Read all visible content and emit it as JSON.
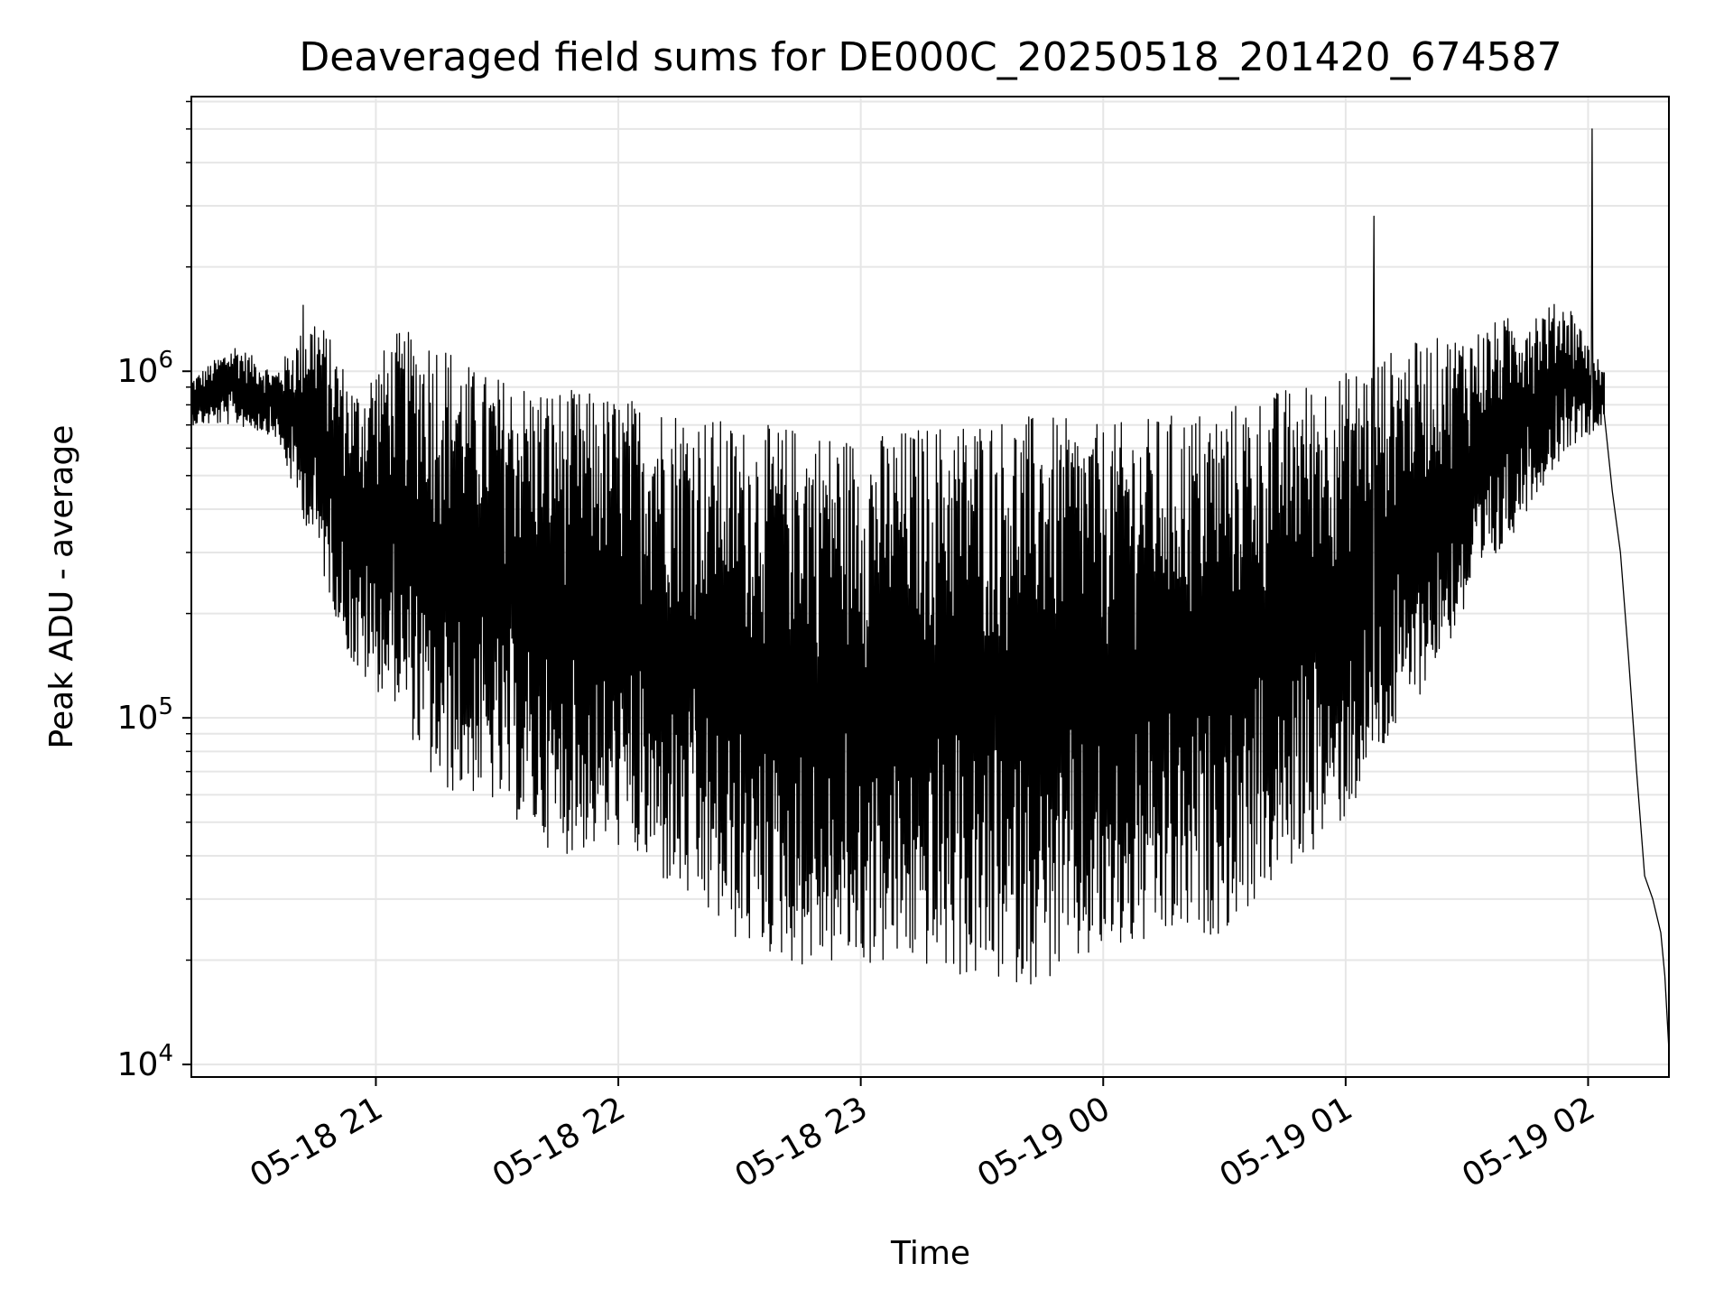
{
  "chart_data": {
    "type": "line",
    "title": "Deaveraged field sums for DE000C_20250518_201420_674587",
    "xlabel": "Time",
    "ylabel": "Peak ADU - average",
    "y_scale": "log",
    "grid": true,
    "line_color": "#000000",
    "grid_color": "#e6e6e6",
    "xlim": [
      "2025-05-18 20:14:20",
      "2025-05-19 02:20:00"
    ],
    "ylim": [
      9200,
      6200000
    ],
    "x_ticks": [
      {
        "value": "2025-05-18 21:00",
        "label": "05-18 21"
      },
      {
        "value": "2025-05-18 22:00",
        "label": "05-18 22"
      },
      {
        "value": "2025-05-18 23:00",
        "label": "05-18 23"
      },
      {
        "value": "2025-05-19 00:00",
        "label": "05-19 00"
      },
      {
        "value": "2025-05-19 01:00",
        "label": "05-19 01"
      },
      {
        "value": "2025-05-19 02:00",
        "label": "05-19 02"
      }
    ],
    "y_ticks": [
      {
        "value": 10000,
        "base": "10",
        "exp": "4"
      },
      {
        "value": 100000,
        "base": "10",
        "exp": "5"
      },
      {
        "value": 1000000,
        "base": "10",
        "exp": "6"
      }
    ],
    "series": [
      {
        "envelope_points": [
          {
            "t": "2025-05-18 20:14:20",
            "high": 950000,
            "low": 700000
          },
          {
            "t": "2025-05-18 20:25",
            "high": 1200000,
            "low": 700000
          },
          {
            "t": "2025-05-18 20:35",
            "high": 1000000,
            "low": 650000
          },
          {
            "t": "2025-05-18 20:45",
            "high": 1500000,
            "low": 300000
          },
          {
            "t": "2025-05-18 20:55",
            "high": 900000,
            "low": 130000
          },
          {
            "t": "2025-05-18 21:05",
            "high": 1300000,
            "low": 110000
          },
          {
            "t": "2025-05-18 21:15",
            "high": 1300000,
            "low": 60000
          },
          {
            "t": "2025-05-18 21:25",
            "high": 1000000,
            "low": 60000
          },
          {
            "t": "2025-05-18 21:35",
            "high": 950000,
            "low": 50000
          },
          {
            "t": "2025-05-18 21:45",
            "high": 900000,
            "low": 40000
          },
          {
            "t": "2025-05-18 22:00",
            "high": 850000,
            "low": 42000
          },
          {
            "t": "2025-05-18 22:15",
            "high": 800000,
            "low": 30000
          },
          {
            "t": "2025-05-18 22:30",
            "high": 700000,
            "low": 22000
          },
          {
            "t": "2025-05-18 22:45",
            "high": 700000,
            "low": 19000
          },
          {
            "t": "2025-05-18 23:00",
            "high": 650000,
            "low": 19000
          },
          {
            "t": "2025-05-18 23:15",
            "high": 700000,
            "low": 19000
          },
          {
            "t": "2025-05-18 23:30",
            "high": 750000,
            "low": 17000
          },
          {
            "t": "2025-05-18 23:45",
            "high": 750000,
            "low": 17000
          },
          {
            "t": "2025-05-19 00:00",
            "high": 700000,
            "low": 20000
          },
          {
            "t": "2025-05-19 00:15",
            "high": 750000,
            "low": 22000
          },
          {
            "t": "2025-05-19 00:30",
            "high": 800000,
            "low": 24000
          },
          {
            "t": "2025-05-19 00:45",
            "high": 900000,
            "low": 35000
          },
          {
            "t": "2025-05-19 01:00",
            "high": 1000000,
            "low": 50000
          },
          {
            "t": "2025-05-19 01:15",
            "high": 1200000,
            "low": 100000
          },
          {
            "t": "2025-05-19 01:30",
            "high": 1300000,
            "low": 200000
          },
          {
            "t": "2025-05-19 01:45",
            "high": 1500000,
            "low": 400000
          },
          {
            "t": "2025-05-19 01:55",
            "high": 1600000,
            "low": 600000
          },
          {
            "t": "2025-05-19 02:04",
            "high": 1000000,
            "low": 700000
          }
        ],
        "spikes": [
          {
            "t": "2025-05-18 20:42",
            "y": 1550000
          },
          {
            "t": "2025-05-19 01:07",
            "y": 2800000
          },
          {
            "t": "2025-05-19 02:01",
            "y": 5000000
          }
        ],
        "tail_points": [
          {
            "t": "2025-05-19 02:04",
            "y": 750000
          },
          {
            "t": "2025-05-19 02:06",
            "y": 450000
          },
          {
            "t": "2025-05-19 02:08",
            "y": 300000
          },
          {
            "t": "2025-05-19 02:10",
            "y": 150000
          },
          {
            "t": "2025-05-19 02:12",
            "y": 70000
          },
          {
            "t": "2025-05-19 02:14",
            "y": 35000
          },
          {
            "t": "2025-05-19 02:16",
            "y": 30000
          },
          {
            "t": "2025-05-19 02:18",
            "y": 24000
          },
          {
            "t": "2025-05-19 02:19",
            "y": 18000
          },
          {
            "t": "2025-05-19 02:20",
            "y": 11000
          }
        ]
      }
    ]
  }
}
